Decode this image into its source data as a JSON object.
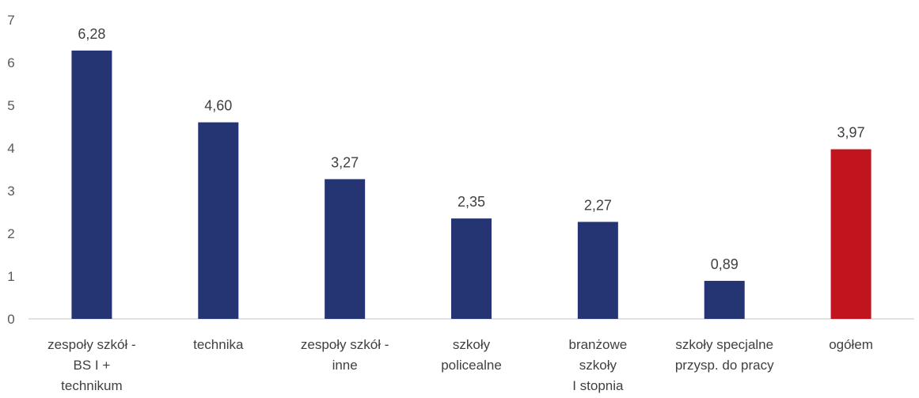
{
  "chart_data": {
    "type": "bar",
    "categories": [
      [
        "zespoły szkół -",
        "BS I +",
        "technikum"
      ],
      [
        "technika"
      ],
      [
        "zespoły szkół -",
        "inne"
      ],
      [
        "szkoły",
        "policealne"
      ],
      [
        "branżowe",
        "szkoły",
        "I stopnia"
      ],
      [
        "szkoły specjalne",
        "przysp. do pracy"
      ],
      [
        "ogółem"
      ]
    ],
    "values": [
      6.28,
      4.6,
      3.27,
      2.35,
      2.27,
      0.89,
      3.97
    ],
    "data_labels": [
      "6,28",
      "4,60",
      "3,27",
      "2,35",
      "2,27",
      "0,89",
      "3,97"
    ],
    "ylim": [
      0,
      7
    ],
    "yticks": [
      0,
      1,
      2,
      3,
      4,
      5,
      6,
      7
    ],
    "ytick_labels": [
      "0",
      "1",
      "2",
      "3",
      "4",
      "5",
      "6",
      "7"
    ],
    "grid": false,
    "legend": "none",
    "colors": {
      "default_bar": "#253574",
      "highlight_bar": "#C0141E",
      "axis": "#D9D9D9"
    },
    "highlight_index": 6
  }
}
